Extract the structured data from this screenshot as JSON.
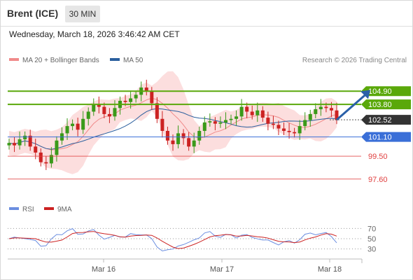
{
  "header": {
    "title": "Brent (ICE)",
    "timeframe": "30 MIN"
  },
  "timestamp": "Wednesday, March 18, 2026 3:46:42 AM CET",
  "legend": [
    {
      "label": "MA 20 + Bollinger Bands",
      "color": "#f08a8a"
    },
    {
      "label": "MA 50",
      "color": "#2b5f9e"
    }
  ],
  "credit": "Research © 2026 Trading Central",
  "levels": [
    {
      "value": "104.90",
      "kind": "resistance",
      "color": "#5aa80a"
    },
    {
      "value": "103.80",
      "kind": "resistance",
      "color": "#5aa80a"
    },
    {
      "value": "102.52",
      "kind": "last-price",
      "color": "#333333"
    },
    {
      "value": "101.10",
      "kind": "pivot",
      "color": "#3a6fd8"
    },
    {
      "value": "99.50",
      "kind": "support",
      "color": "#e04040"
    },
    {
      "value": "97.60",
      "kind": "support",
      "color": "#e04040"
    }
  ],
  "rsi_legend": [
    {
      "label": "RSI",
      "color": "#6b8ee0"
    },
    {
      "label": "9MA",
      "color": "#cc2222"
    }
  ],
  "rsi_levels": [
    "70",
    "50",
    "30"
  ],
  "x_labels": [
    "Mar 16",
    "Mar 17",
    "Mar 18"
  ],
  "chart_data": {
    "type": "candlestick",
    "price_range": [
      96.6,
      106.6
    ],
    "levels": [
      104.9,
      103.8,
      101.1,
      99.5,
      97.6
    ],
    "last_price": 102.52,
    "close_approx": [
      100.6,
      100.4,
      100.9,
      101.2,
      100.3,
      99.8,
      99.0,
      98.9,
      99.6,
      100.8,
      101.4,
      102.0,
      102.2,
      101.7,
      102.6,
      103.2,
      103.8,
      103.6,
      103.0,
      102.8,
      103.5,
      104.1,
      104.0,
      104.3,
      104.6,
      105.2,
      104.9,
      103.9,
      102.6,
      101.6,
      100.8,
      100.5,
      101.4,
      101.0,
      100.3,
      100.8,
      101.6,
      102.3,
      102.4,
      102.2,
      102.3,
      102.5,
      102.6,
      102.8,
      103.6,
      103.2,
      102.9,
      103.3,
      102.7,
      102.2,
      102.1,
      101.8,
      101.6,
      101.5,
      101.4,
      102.0,
      102.5,
      103.0,
      103.4,
      103.6,
      103.5,
      103.3,
      102.52
    ],
    "rsi": {
      "range": [
        20,
        80
      ],
      "levels": [
        70,
        50,
        30
      ]
    }
  }
}
